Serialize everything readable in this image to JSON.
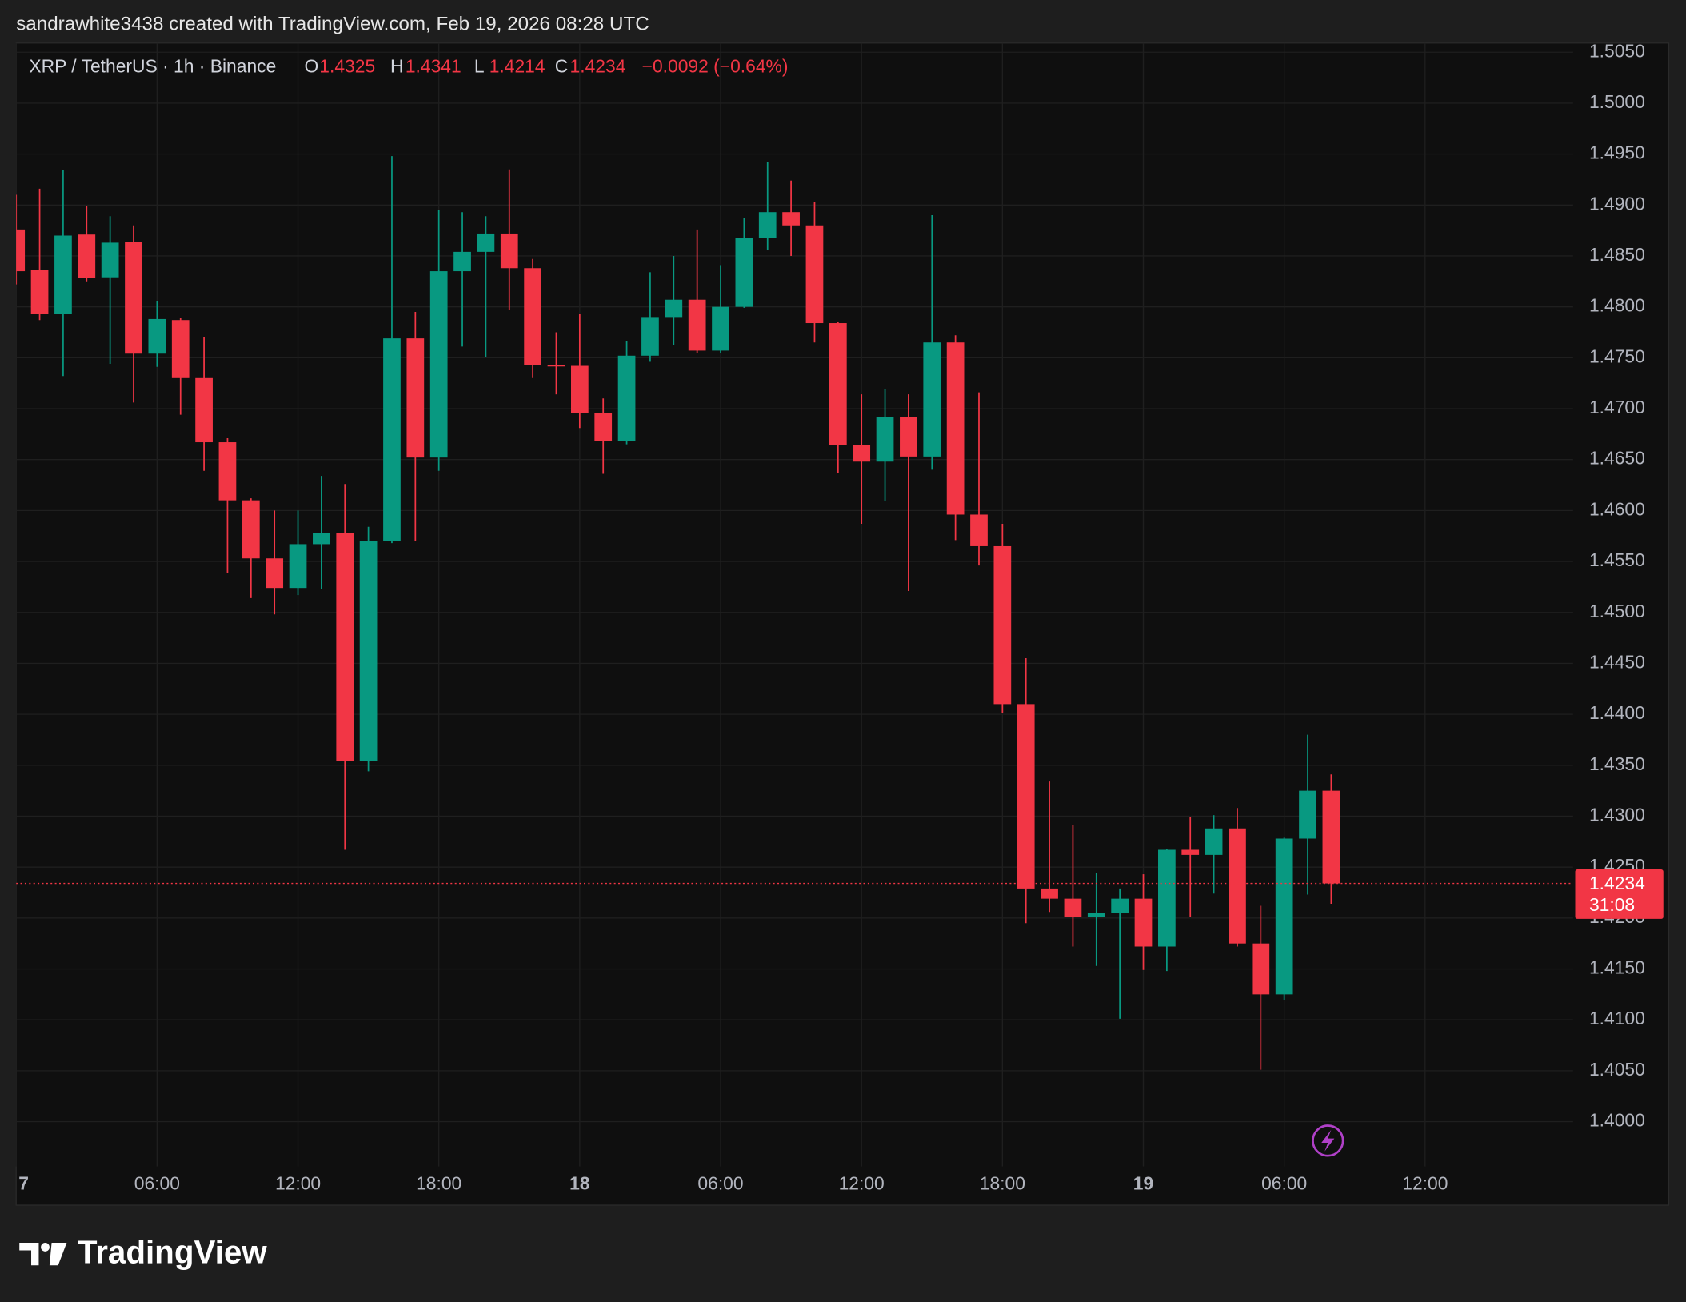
{
  "header": "sandrawhite3438 created with TradingView.com, Feb 19, 2026 08:28 UTC",
  "chart_data": {
    "type": "candlestick",
    "title": "XRP / TetherUS · 1h · Binance",
    "legend_labels": {
      "open": "O",
      "high": "H",
      "low": "L",
      "close": "C"
    },
    "change": "−0.0092 (−0.64%)",
    "countdown": "31:08",
    "up_color": "#089981",
    "down_color": "#f23645",
    "x": [
      0,
      1,
      2,
      3,
      4,
      5,
      6,
      7,
      8,
      9,
      10,
      11,
      12,
      13,
      14,
      15,
      16,
      17,
      18,
      19,
      20,
      21,
      22,
      23,
      24,
      25,
      26,
      27,
      28,
      29,
      30,
      31,
      32,
      33,
      34,
      35,
      36,
      37,
      38,
      39,
      40,
      41,
      42,
      43,
      44,
      45,
      46,
      47,
      48,
      49,
      50,
      51,
      52,
      53,
      54,
      55,
      56
    ],
    "open": [
      1.4876,
      1.4836,
      1.4793,
      1.4871,
      1.4829,
      1.4864,
      1.4754,
      1.4787,
      1.473,
      1.4667,
      1.461,
      1.4553,
      1.4524,
      1.4567,
      1.4578,
      1.4354,
      1.457,
      1.4769,
      1.4652,
      1.4835,
      1.4854,
      1.4872,
      1.4838,
      1.4743,
      1.4742,
      1.4696,
      1.4668,
      1.4752,
      1.479,
      1.4807,
      1.4757,
      1.48,
      1.4868,
      1.4893,
      1.488,
      1.4784,
      1.4664,
      1.4648,
      1.4692,
      1.4653,
      1.4765,
      1.4596,
      1.4565,
      1.441,
      1.4229,
      1.4219,
      1.4201,
      1.4205,
      1.4219,
      1.4172,
      1.4267,
      1.4262,
      1.4288,
      1.4175,
      1.4125,
      1.4278,
      1.4325
    ],
    "high": [
      1.491,
      1.4916,
      1.4934,
      1.4899,
      1.4889,
      1.488,
      1.4806,
      1.4789,
      1.477,
      1.4671,
      1.4612,
      1.46,
      1.46,
      1.4634,
      1.4626,
      1.4584,
      1.4948,
      1.4795,
      1.4895,
      1.4893,
      1.4889,
      1.4935,
      1.4847,
      1.4775,
      1.4793,
      1.471,
      1.4766,
      1.4834,
      1.485,
      1.4876,
      1.4841,
      1.4887,
      1.4942,
      1.4924,
      1.4903,
      1.4785,
      1.4714,
      1.4719,
      1.4714,
      1.489,
      1.4772,
      1.4716,
      1.4587,
      1.4455,
      1.4334,
      1.4291,
      1.4244,
      1.4229,
      1.4243,
      1.4268,
      1.4299,
      1.4301,
      1.4308,
      1.4212,
      1.4279,
      1.438,
      1.4341
    ],
    "low": [
      1.4822,
      1.4787,
      1.4732,
      1.4825,
      1.4744,
      1.4706,
      1.4741,
      1.4694,
      1.4639,
      1.4539,
      1.4514,
      1.4498,
      1.4517,
      1.4523,
      1.4267,
      1.4344,
      1.4568,
      1.457,
      1.4639,
      1.4761,
      1.4751,
      1.4797,
      1.473,
      1.4714,
      1.4681,
      1.4636,
      1.4665,
      1.4746,
      1.4762,
      1.4755,
      1.4755,
      1.4799,
      1.4856,
      1.485,
      1.4765,
      1.4637,
      1.4587,
      1.4609,
      1.4521,
      1.464,
      1.4571,
      1.4546,
      1.4401,
      1.4195,
      1.4206,
      1.4172,
      1.4153,
      1.4101,
      1.4149,
      1.4148,
      1.4201,
      1.4224,
      1.4172,
      1.4051,
      1.4119,
      1.4223,
      1.4214
    ],
    "close": [
      1.4835,
      1.4793,
      1.487,
      1.4828,
      1.4863,
      1.4754,
      1.4788,
      1.473,
      1.4667,
      1.461,
      1.4553,
      1.4524,
      1.4567,
      1.4578,
      1.4354,
      1.457,
      1.4769,
      1.4652,
      1.4835,
      1.4854,
      1.4872,
      1.4838,
      1.4743,
      1.4742,
      1.4696,
      1.4668,
      1.4752,
      1.479,
      1.4807,
      1.4757,
      1.48,
      1.4868,
      1.4893,
      1.488,
      1.4784,
      1.4664,
      1.4648,
      1.4692,
      1.4653,
      1.4765,
      1.4596,
      1.4565,
      1.441,
      1.4229,
      1.4219,
      1.4201,
      1.4205,
      1.4219,
      1.4172,
      1.4267,
      1.4262,
      1.4288,
      1.4175,
      1.4125,
      1.4278,
      1.4325,
      1.4234
    ],
    "xlim": [
      0,
      66.3
    ],
    "xticks": [
      {
        "value": 0,
        "label": "7"
      },
      {
        "value": 6,
        "label": "06:00"
      },
      {
        "value": 12,
        "label": "12:00"
      },
      {
        "value": 18,
        "label": "18:00"
      },
      {
        "value": 24,
        "label": "18"
      },
      {
        "value": 30,
        "label": "06:00"
      },
      {
        "value": 36,
        "label": "12:00"
      },
      {
        "value": 42,
        "label": "18:00"
      },
      {
        "value": 48,
        "label": "19"
      },
      {
        "value": 54,
        "label": "06:00"
      },
      {
        "value": 60,
        "label": "12:00"
      }
    ],
    "ylim": [
      1.3956,
      1.5059
    ],
    "yticks": [
      {
        "value": 1.4,
        "label": "1.4000"
      },
      {
        "value": 1.405,
        "label": "1.4050"
      },
      {
        "value": 1.41,
        "label": "1.4100"
      },
      {
        "value": 1.415,
        "label": "1.4150"
      },
      {
        "value": 1.42,
        "label": "1.4200"
      },
      {
        "value": 1.425,
        "label": "1.4250"
      },
      {
        "value": 1.43,
        "label": "1.4300"
      },
      {
        "value": 1.435,
        "label": "1.4350"
      },
      {
        "value": 1.44,
        "label": "1.4400"
      },
      {
        "value": 1.445,
        "label": "1.4450"
      },
      {
        "value": 1.45,
        "label": "1.4500"
      },
      {
        "value": 1.455,
        "label": "1.4550"
      },
      {
        "value": 1.46,
        "label": "1.4600"
      },
      {
        "value": 1.465,
        "label": "1.4650"
      },
      {
        "value": 1.47,
        "label": "1.4700"
      },
      {
        "value": 1.475,
        "label": "1.4750"
      },
      {
        "value": 1.48,
        "label": "1.4800"
      },
      {
        "value": 1.485,
        "label": "1.4850"
      },
      {
        "value": 1.49,
        "label": "1.4900"
      },
      {
        "value": 1.495,
        "label": "1.4950"
      },
      {
        "value": 1.5,
        "label": "1.5000"
      },
      {
        "value": 1.505,
        "label": "1.5050"
      }
    ],
    "grid": true
  },
  "footer": {
    "brand": "TradingView"
  }
}
